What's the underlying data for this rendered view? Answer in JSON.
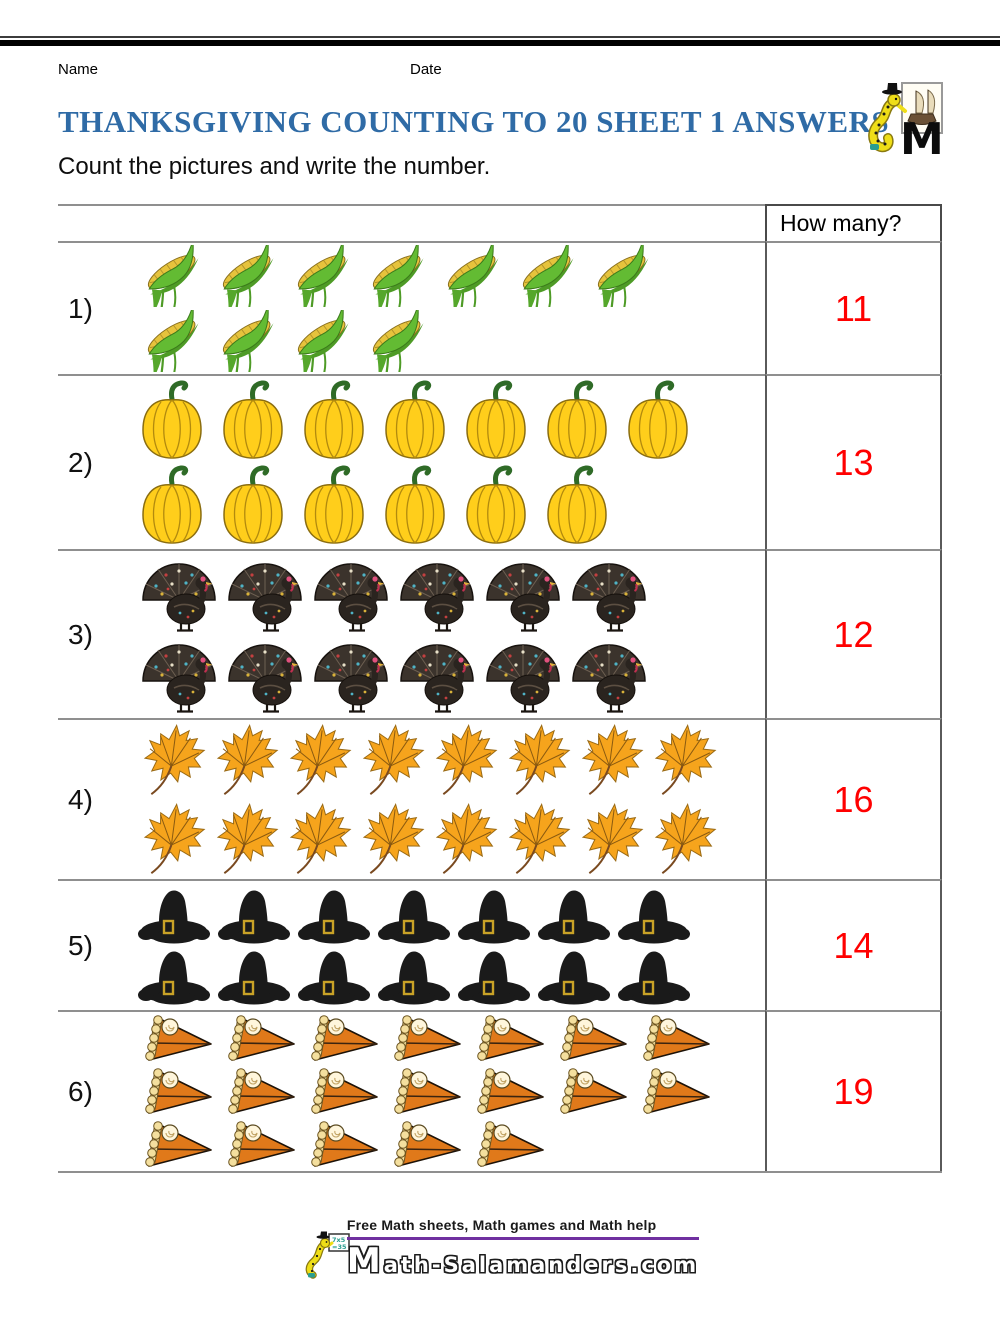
{
  "page": {
    "name_label": "Name",
    "date_label": "Date",
    "title": "THANKSGIVING COUNTING TO 20 SHEET 1 ANSWERS",
    "instruction": "Count the pictures and write the number."
  },
  "table": {
    "how_many_label": "How many?",
    "answer_color": "#ff0000",
    "rows": [
      {
        "number_label": "1)",
        "item": "corn",
        "icon": "corn-icon",
        "lines": [
          7,
          4
        ],
        "count": 11,
        "answer": "11"
      },
      {
        "number_label": "2)",
        "item": "pumpkin",
        "icon": "pumpkin-icon",
        "lines": [
          7,
          6
        ],
        "count": 13,
        "answer": "13"
      },
      {
        "number_label": "3)",
        "item": "turkey",
        "icon": "turkey-icon",
        "lines": [
          6,
          6
        ],
        "count": 12,
        "answer": "12"
      },
      {
        "number_label": "4)",
        "item": "leaf",
        "icon": "maple-leaf-icon",
        "lines": [
          8,
          8
        ],
        "count": 16,
        "answer": "16"
      },
      {
        "number_label": "5)",
        "item": "pilgrim-hat",
        "icon": "pilgrim-hat-icon",
        "lines": [
          7,
          7
        ],
        "count": 14,
        "answer": "14"
      },
      {
        "number_label": "6)",
        "item": "pumpkin-pie",
        "icon": "pumpkin-pie-icon",
        "lines": [
          7,
          7,
          5
        ],
        "count": 19,
        "answer": "19"
      }
    ]
  },
  "footer": {
    "tagline": "Free Math sheets, Math games and Math help",
    "site": "Math-Salamanders.com",
    "board_line1": "7x5",
    "board_line2": "=35",
    "underline_color": "#7030a0"
  },
  "colors": {
    "title_blue": "#2f6ba6",
    "answer_red": "#ff0000",
    "line_gray": "#8f8f8f"
  }
}
